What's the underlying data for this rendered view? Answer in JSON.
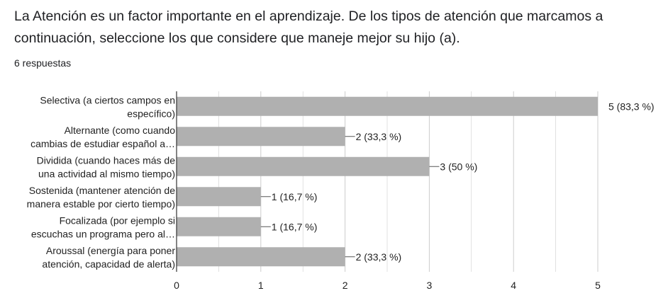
{
  "question": {
    "title": "La Atención es un factor importante en el aprendizaje. De los tipos de atención que marcamos a continuación, seleccione los que considere que maneje mejor su hijo (a).",
    "responses": "6 respuestas"
  },
  "colors": {
    "bar": "#b0b0b0",
    "grid": "#cccccc",
    "axis": "#333333"
  },
  "chart_data": {
    "type": "bar",
    "orientation": "horizontal",
    "categories": [
      [
        "Selectiva (a ciertos campos en",
        "específico)"
      ],
      [
        "Alternante (como cuando",
        "cambias de estudiar español a…"
      ],
      [
        "Dividida (cuando haces más de",
        "una actividad al mismo tiempo)"
      ],
      [
        "Sostenida (mantener atención de",
        "manera estable por cierto tiempo)"
      ],
      [
        "Focalizada (por ejemplo si",
        "escuchas un programa pero al…"
      ],
      [
        "Aroussal (energía para poner",
        "atención, capacidad de alerta)"
      ]
    ],
    "values": [
      5,
      2,
      3,
      1,
      1,
      2
    ],
    "value_labels": [
      "5 (83,3 %)",
      "2 (33,3 %)",
      "3 (50 %)",
      "1 (16,7 %)",
      "1 (16,7 %)",
      "2 (33,3 %)"
    ],
    "xlim": [
      0,
      5
    ],
    "xticks": [
      "0",
      "1",
      "2",
      "3",
      "4",
      "5"
    ],
    "grid": true
  }
}
